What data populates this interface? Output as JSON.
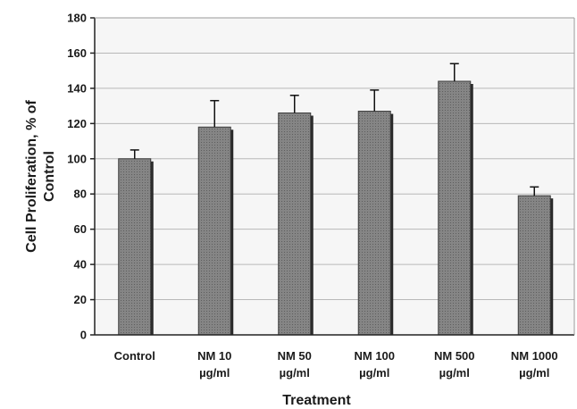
{
  "chart_data": {
    "type": "bar",
    "categories": [
      [
        "Control"
      ],
      [
        "NM 10",
        "µg/ml"
      ],
      [
        "NM 50",
        "µg/ml"
      ],
      [
        "NM 100",
        "µg/ml"
      ],
      [
        "NM 500",
        "µg/ml"
      ],
      [
        "NM 1000",
        "µg/ml"
      ]
    ],
    "values": [
      100,
      118,
      126,
      127,
      144,
      79
    ],
    "errors": [
      5,
      15,
      10,
      12,
      10,
      5
    ],
    "xlabel": "Treatment",
    "ylabel": [
      "Cell Proliferation, % of",
      "Control"
    ],
    "ylim": [
      0,
      180
    ],
    "yticks": [
      0,
      20,
      40,
      60,
      80,
      100,
      120,
      140,
      160,
      180
    ],
    "grid": true,
    "bar_color": "#7d7d7d",
    "bar_shadow_color": "#2a2a2a",
    "plot_background": "#f6f6f6",
    "gridline_color": "#b8b8b8"
  }
}
